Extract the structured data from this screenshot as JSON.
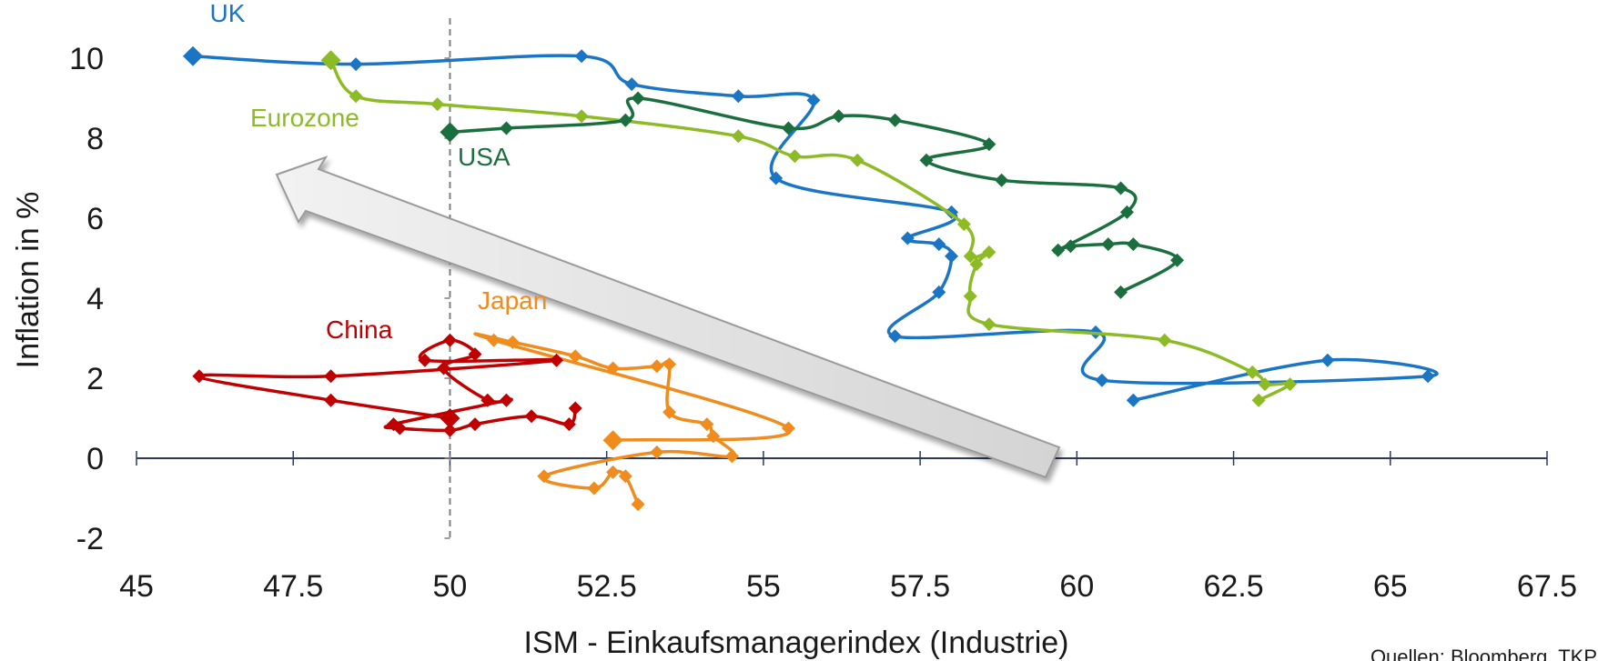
{
  "chart_data": {
    "type": "line",
    "xlabel": "ISM - Einkaufsmanagerindex (Industrie)",
    "ylabel": "Inflation in %",
    "xlim": [
      45,
      67.5
    ],
    "ylim": [
      -2,
      10.5
    ],
    "x_ticks": [
      "45",
      "47.5",
      "50",
      "52.5",
      "55",
      "57.5",
      "60",
      "62.5",
      "65",
      "67.5"
    ],
    "y_ticks": [
      "-2",
      "0",
      "2",
      "4",
      "6",
      "8",
      "10"
    ],
    "reference_line_x": 50,
    "source_note": "Quellen: Bloomberg, TKP",
    "series": [
      {
        "name": "UK",
        "color": "#1a75c4",
        "points": [
          [
            60.9,
            1.45
          ],
          [
            64.0,
            2.45
          ],
          [
            65.6,
            2.05
          ],
          [
            60.4,
            1.95
          ],
          [
            60.3,
            3.15
          ],
          [
            57.1,
            3.05
          ],
          [
            57.8,
            4.15
          ],
          [
            58.0,
            5.05
          ],
          [
            57.8,
            5.35
          ],
          [
            57.3,
            5.5
          ],
          [
            58.0,
            6.15
          ],
          [
            55.2,
            7.0
          ],
          [
            55.8,
            8.95
          ],
          [
            54.6,
            9.05
          ],
          [
            52.9,
            9.35
          ],
          [
            52.1,
            10.05
          ],
          [
            48.5,
            9.85
          ],
          [
            45.9,
            10.05
          ]
        ]
      },
      {
        "name": "Eurozone",
        "color": "#8dbb25",
        "points": [
          [
            62.9,
            1.45
          ],
          [
            63.4,
            1.85
          ],
          [
            63.0,
            1.85
          ],
          [
            62.8,
            2.15
          ],
          [
            61.4,
            2.95
          ],
          [
            58.6,
            3.35
          ],
          [
            58.3,
            4.05
          ],
          [
            58.4,
            4.85
          ],
          [
            58.6,
            5.15
          ],
          [
            58.3,
            5.05
          ],
          [
            58.2,
            5.85
          ],
          [
            56.5,
            7.45
          ],
          [
            55.5,
            7.55
          ],
          [
            54.6,
            8.05
          ],
          [
            52.1,
            8.55
          ],
          [
            49.8,
            8.85
          ],
          [
            48.5,
            9.05
          ],
          [
            48.1,
            9.95
          ]
        ]
      },
      {
        "name": "USA",
        "color": "#1b6f3e",
        "points": [
          [
            60.7,
            4.15
          ],
          [
            61.6,
            4.95
          ],
          [
            60.9,
            5.35
          ],
          [
            60.5,
            5.35
          ],
          [
            59.9,
            5.3
          ],
          [
            59.7,
            5.2
          ],
          [
            60.8,
            6.15
          ],
          [
            60.7,
            6.75
          ],
          [
            58.8,
            6.95
          ],
          [
            57.6,
            7.45
          ],
          [
            58.6,
            7.85
          ],
          [
            57.1,
            8.45
          ],
          [
            56.2,
            8.55
          ],
          [
            55.4,
            8.25
          ],
          [
            53.0,
            9.0
          ],
          [
            52.8,
            8.45
          ],
          [
            50.9,
            8.25
          ],
          [
            50.0,
            8.15
          ]
        ]
      },
      {
        "name": "Japan",
        "color": "#f08c1e",
        "points": [
          [
            53.0,
            -1.15
          ],
          [
            52.8,
            -0.45
          ],
          [
            52.6,
            -0.35
          ],
          [
            52.3,
            -0.75
          ],
          [
            51.5,
            -0.45
          ],
          [
            53.3,
            0.15
          ],
          [
            54.5,
            0.05
          ],
          [
            54.2,
            0.55
          ],
          [
            54.1,
            0.85
          ],
          [
            53.5,
            1.15
          ],
          [
            53.5,
            2.35
          ],
          [
            53.3,
            2.3
          ],
          [
            52.6,
            2.25
          ],
          [
            52.0,
            2.55
          ],
          [
            51.0,
            2.9
          ],
          [
            50.7,
            2.95
          ],
          [
            55.4,
            0.75
          ],
          [
            52.6,
            0.45
          ]
        ]
      },
      {
        "name": "China",
        "color": "#c00000",
        "points": [
          [
            52.0,
            1.25
          ],
          [
            51.9,
            0.85
          ],
          [
            51.3,
            1.05
          ],
          [
            50.4,
            0.85
          ],
          [
            50.0,
            0.7
          ],
          [
            49.2,
            0.75
          ],
          [
            49.1,
            0.85
          ],
          [
            50.9,
            1.45
          ],
          [
            50.6,
            1.45
          ],
          [
            49.9,
            2.25
          ],
          [
            50.4,
            2.6
          ],
          [
            50.0,
            2.95
          ],
          [
            49.6,
            2.45
          ],
          [
            51.7,
            2.45
          ],
          [
            48.1,
            2.05
          ],
          [
            46.0,
            2.05
          ],
          [
            48.1,
            1.45
          ],
          [
            50.0,
            1.0
          ]
        ]
      }
    ]
  }
}
